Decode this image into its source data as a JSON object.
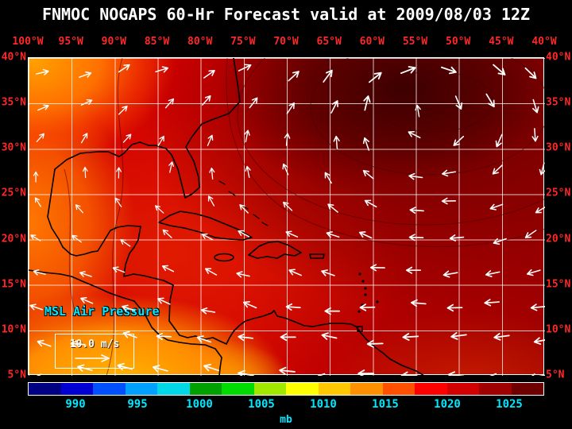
{
  "header": {
    "title": "FNMOC NOGAPS 60-Hr Forecast valid at 2009/08/03 12Z"
  },
  "map": {
    "lon_labels": [
      "100°W",
      "95°W",
      "90°W",
      "85°W",
      "80°W",
      "75°W",
      "70°W",
      "65°W",
      "60°W",
      "55°W",
      "50°W",
      "45°W",
      "40°W"
    ],
    "lat_labels": [
      "40°N",
      "35°N",
      "30°N",
      "25°N",
      "20°N",
      "15°N",
      "10°N",
      "5°N"
    ],
    "field_label": "MSL Air Pressure",
    "wind_reference": "10.0 m/s"
  },
  "colorbar": {
    "tick_labels": [
      "990",
      "995",
      "1000",
      "1005",
      "1010",
      "1015",
      "1020",
      "1025"
    ],
    "unit": "mb",
    "segment_colors": [
      "#000082",
      "#0000d2",
      "#0050ff",
      "#00a0ff",
      "#00d8e8",
      "#00a000",
      "#00dc00",
      "#a0e800",
      "#ffff00",
      "#ffc800",
      "#ff9000",
      "#ff5000",
      "#ff0000",
      "#d20000",
      "#a00000",
      "#6e0000"
    ]
  },
  "colors": {
    "background": "#000000",
    "title_text": "#ffffff",
    "axis_text": "#ff2828",
    "label_text": "#00e8ff",
    "grid": "#ffffff",
    "coastline": "#000000",
    "wind_vector": "#ffffff"
  },
  "chart_data": {
    "type": "heatmap",
    "variable": "MSL Air Pressure",
    "unit": "mb",
    "colorbar_ticks": [
      990,
      995,
      1000,
      1005,
      1010,
      1015,
      1020,
      1025
    ],
    "lon_domain": [
      "100°W",
      "40°W"
    ],
    "lat_domain": [
      "5°N",
      "40°N"
    ],
    "grid_interval_deg": 5,
    "wind_reference_m_per_s": 10.0,
    "field_summary": {
      "high": "dark-red subtropical high ~1022-1026 mb centered near 50°W 35°N",
      "low": "orange-yellow ~1006-1010 mb over Central America, SW Gulf and map west edge",
      "background": "red ~1012-1016 mb over most of the Caribbean and Atlantic"
    }
  }
}
